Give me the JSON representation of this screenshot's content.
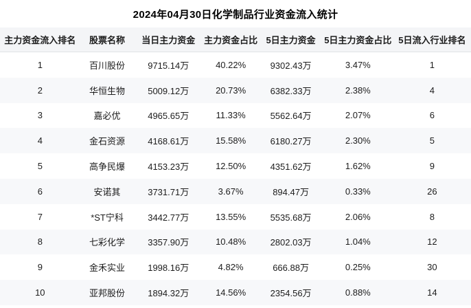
{
  "title": "2024年04月30日化学制品行业资金流入统计",
  "colors": {
    "page_background": "#ffffff",
    "header_background": "#f4f5f7",
    "even_row_background": "#f7f8fa",
    "header_border": "#e0e2e5",
    "text": "#1c1c1c",
    "title_text": "#000000"
  },
  "chart_data": {
    "type": "table",
    "title": "2024年04月30日化学制品行业资金流入统计",
    "columns": [
      "主力资金流入排名",
      "股票名称",
      "当日主力资金",
      "主力资金占比",
      "5日主力资金",
      "5日主力资金占比",
      "5日流入行业排名"
    ],
    "rows": [
      [
        "1",
        "百川股份",
        "9715.14万",
        "40.22%",
        "9302.43万",
        "3.47%",
        "1"
      ],
      [
        "2",
        "华恒生物",
        "5009.12万",
        "20.73%",
        "6382.33万",
        "2.38%",
        "4"
      ],
      [
        "3",
        "嘉必优",
        "4965.65万",
        "11.33%",
        "5562.64万",
        "2.07%",
        "6"
      ],
      [
        "4",
        "金石资源",
        "4168.61万",
        "15.58%",
        "6180.27万",
        "2.30%",
        "5"
      ],
      [
        "5",
        "高争民爆",
        "4153.23万",
        "12.50%",
        "4351.62万",
        "1.62%",
        "9"
      ],
      [
        "6",
        "安诺其",
        "3731.71万",
        "3.67%",
        "894.47万",
        "0.33%",
        "26"
      ],
      [
        "7",
        "*ST宁科",
        "3442.77万",
        "13.55%",
        "5535.68万",
        "2.06%",
        "8"
      ],
      [
        "8",
        "七彩化学",
        "3357.90万",
        "10.48%",
        "2802.03万",
        "1.04%",
        "12"
      ],
      [
        "9",
        "金禾实业",
        "1998.16万",
        "4.82%",
        "666.88万",
        "0.25%",
        "30"
      ],
      [
        "10",
        "亚邦股份",
        "1894.32万",
        "14.56%",
        "2354.56万",
        "0.88%",
        "14"
      ]
    ],
    "layout": {
      "title_position": "top-center",
      "row_striping": true,
      "grid": false
    }
  }
}
